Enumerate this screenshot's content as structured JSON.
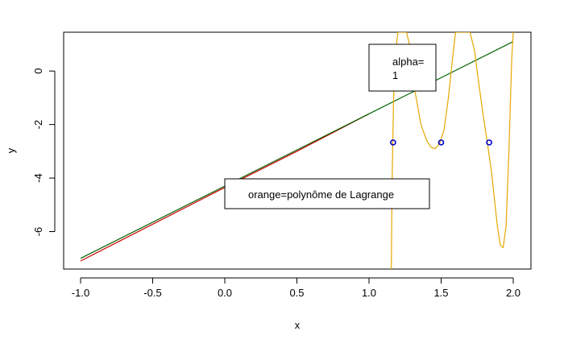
{
  "chart_data": {
    "type": "line",
    "title": "",
    "xlabel": "x",
    "ylabel": "y",
    "xlim": [
      -1.0,
      2.0
    ],
    "ylim": [
      -7.4,
      1.45
    ],
    "x_ticks": [
      -1.0,
      -0.5,
      0.0,
      0.5,
      1.0,
      1.5,
      2.0
    ],
    "x_tick_labels": [
      "-1.0",
      "-0.5",
      "0.0",
      "0.5",
      "1.0",
      "1.5",
      "2.0"
    ],
    "y_ticks": [
      -6,
      -4,
      -2,
      0
    ],
    "y_tick_labels": [
      "-6",
      "-4",
      "-2",
      "0"
    ],
    "grid": false,
    "series": [
      {
        "color": "#cc0000",
        "style": "line",
        "x": [
          -1.0,
          0.0,
          0.5,
          1.0
        ],
        "y": [
          -7.1,
          -4.35,
          -3.0,
          -1.6
        ]
      },
      {
        "color": "#006400",
        "style": "line",
        "x": [
          -1.0,
          0.0,
          1.0,
          2.0
        ],
        "y": [
          -7.0,
          -4.3,
          -1.6,
          1.1
        ]
      },
      {
        "color": "#e6a800",
        "style": "line",
        "x": [
          1.155,
          1.16,
          1.165,
          1.17,
          1.18,
          1.2,
          1.23,
          1.26,
          1.28,
          1.32,
          1.36,
          1.4,
          1.43,
          1.46,
          1.49,
          1.52,
          1.55,
          1.58,
          1.6,
          1.63,
          1.66,
          1.7,
          1.73,
          1.76,
          1.79,
          1.82,
          1.85,
          1.87,
          1.89,
          1.91,
          1.93,
          1.95,
          1.97,
          1.99,
          2.0
        ],
        "y": [
          -7.4,
          -4.2,
          -2.67,
          -1.2,
          0.5,
          1.45,
          1.45,
          1.45,
          1.0,
          -0.8,
          -2.0,
          -2.6,
          -2.85,
          -2.9,
          -2.7,
          -2.2,
          -1.0,
          0.5,
          1.45,
          1.45,
          1.45,
          1.45,
          0.8,
          -0.4,
          -1.6,
          -2.67,
          -3.8,
          -4.8,
          -5.8,
          -6.5,
          -6.6,
          -5.8,
          -3.0,
          0.5,
          1.45
        ]
      },
      {
        "color": "#0000cc",
        "style": "points",
        "x": [
          1.167,
          1.5,
          1.833
        ],
        "y": [
          -2.67,
          -2.67,
          -2.67
        ]
      }
    ],
    "annotations": [
      {
        "lines": [
          "alpha=",
          "1"
        ]
      },
      {
        "lines": [
          "orange=polynôme de Lagrange"
        ]
      }
    ]
  }
}
